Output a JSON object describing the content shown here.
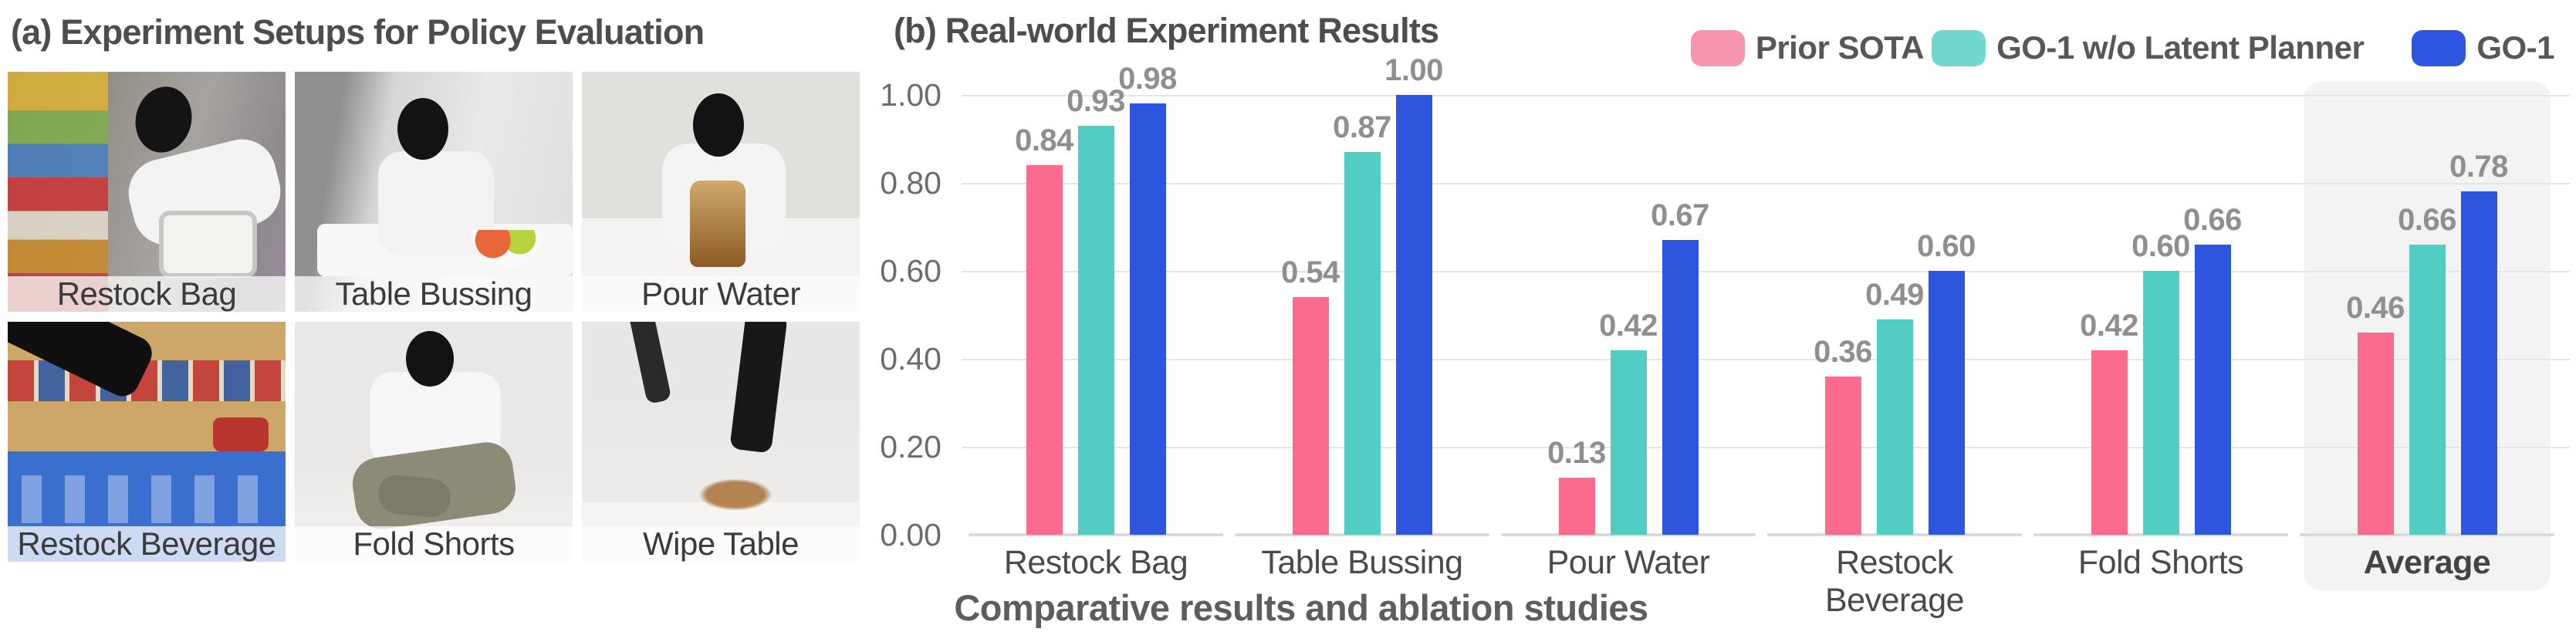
{
  "panel_a": {
    "title": "(a) Experiment Setups for Policy Evaluation",
    "photos": [
      {
        "label": "Restock Bag"
      },
      {
        "label": "Table Bussing"
      },
      {
        "label": "Pour Water"
      },
      {
        "label": "Restock Beverage"
      },
      {
        "label": "Fold Shorts"
      },
      {
        "label": "Wipe Table"
      }
    ]
  },
  "panel_b": {
    "title": "(b) Real-world Experiment Results",
    "caption": "Comparative results and ablation studies"
  },
  "chart_data": {
    "type": "bar",
    "title": "(b) Real-world Experiment Results",
    "categories": [
      "Restock Bag",
      "Table Bussing",
      "Pour Water",
      "Restock Beverage",
      "Fold Shorts",
      "Average"
    ],
    "series": [
      {
        "name": "Prior SOTA",
        "color": "#FA6B8D",
        "values": [
          0.84,
          0.54,
          0.13,
          0.36,
          0.42,
          0.46
        ]
      },
      {
        "name": "GO-1 w/o Latent Planner",
        "color": "#52CDC3",
        "values": [
          0.93,
          0.87,
          0.42,
          0.49,
          0.6,
          0.66
        ]
      },
      {
        "name": "GO-1",
        "color": "#2E55DE",
        "values": [
          0.98,
          1.0,
          0.67,
          0.6,
          0.66,
          0.78
        ]
      }
    ],
    "legend_colors": [
      "#F795AE",
      "#72D8CF",
      "#2D55DF"
    ],
    "ylim": [
      0.0,
      1.0
    ],
    "yticks": [
      "1.00",
      "0.80",
      "0.60",
      "0.40",
      "0.20",
      "0.00"
    ],
    "grid": true,
    "legend_position": "top-right",
    "highlight_category": "Average",
    "highlight_color": "#f3f3f3",
    "value_labels": "above bars, 2 decimals",
    "xlabel": "",
    "ylabel": ""
  }
}
